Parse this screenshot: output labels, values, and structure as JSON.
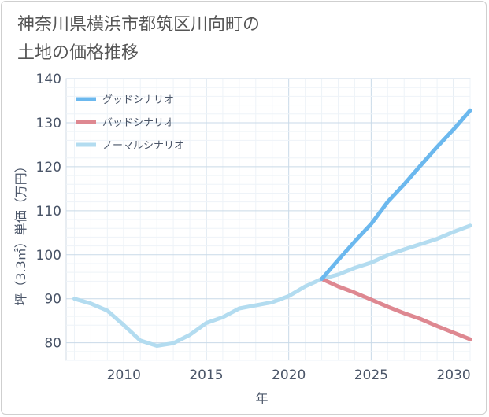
{
  "title": {
    "line1": "神奈川県横浜市都筑区川向町の",
    "line2": "土地の価格推移"
  },
  "chart_data": {
    "type": "line",
    "xlabel": "年",
    "ylabel": "坪（3.3㎡）単価（万円）",
    "xlim": [
      2006.5,
      2031
    ],
    "ylim": [
      76,
      140
    ],
    "x_ticks": [
      2010,
      2015,
      2020,
      2025,
      2030
    ],
    "y_ticks": [
      80,
      90,
      100,
      110,
      120,
      130,
      140
    ],
    "grid": true,
    "legend_position": "top-left",
    "series": [
      {
        "name": "グッドシナリオ",
        "color": "#6bb8ee",
        "width": 5,
        "x": [
          2022,
          2023,
          2024,
          2025,
          2026,
          2027,
          2028,
          2029,
          2030,
          2031
        ],
        "y": [
          94.5,
          98.8,
          103,
          107,
          112,
          116,
          120.3,
          124.5,
          128.5,
          132.8
        ]
      },
      {
        "name": "バッドシナリオ",
        "color": "#de8891",
        "width": 5,
        "x": [
          2022,
          2023,
          2024,
          2025,
          2026,
          2027,
          2028,
          2029,
          2030,
          2031
        ],
        "y": [
          94.5,
          92.8,
          91.4,
          89.8,
          88.2,
          86.7,
          85.4,
          83.8,
          82.3,
          80.8
        ]
      },
      {
        "name": "ノーマルシナリオ",
        "color": "#b3dcf0",
        "width": 5,
        "x": [
          2007,
          2008,
          2009,
          2010,
          2011,
          2012,
          2013,
          2014,
          2015,
          2016,
          2017,
          2018,
          2019,
          2020,
          2021,
          2022,
          2023,
          2024,
          2025,
          2026,
          2027,
          2028,
          2029,
          2030,
          2031
        ],
        "y": [
          90,
          88.9,
          87.3,
          84,
          80.5,
          79.3,
          79.9,
          81.8,
          84.5,
          85.8,
          87.8,
          88.5,
          89.2,
          90.6,
          92.8,
          94.5,
          95.5,
          97,
          98.2,
          99.9,
          101.2,
          102.4,
          103.6,
          105.2,
          106.6
        ]
      }
    ]
  }
}
